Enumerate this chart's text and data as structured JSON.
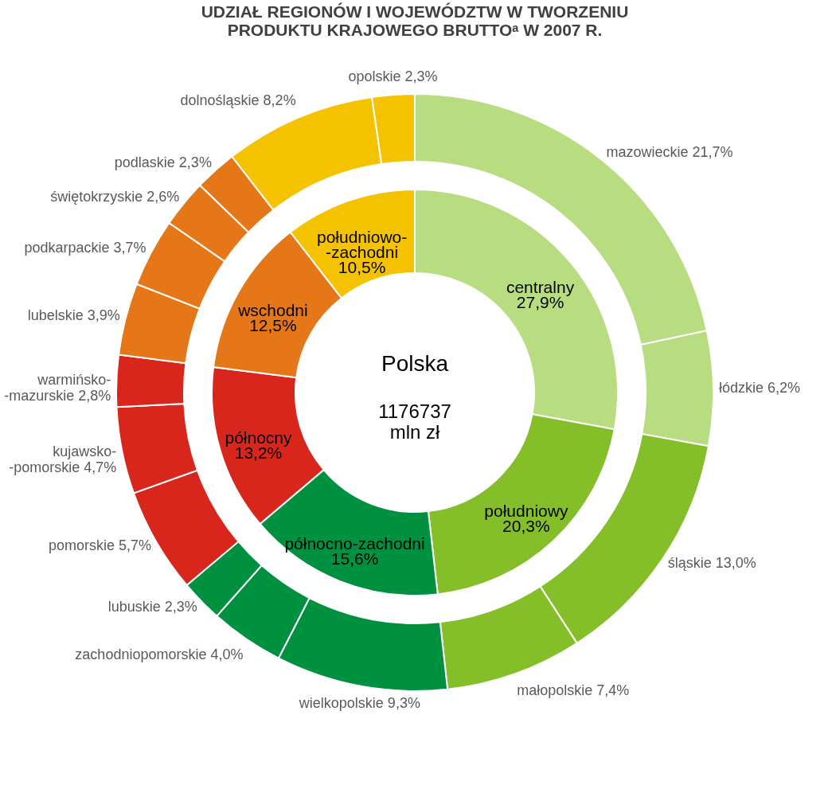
{
  "chart_data": {
    "type": "donut",
    "title": [
      "UDZIAŁ  REGIONÓW  I  WOJEWÓDZTW  W  TWORZENIU",
      "PRODUKTU  KRAJOWEGO  BRUTTOᵃ  W  2007 R."
    ],
    "categories": [
      "centralny",
      "południowy",
      "północno-zachodni",
      "północny",
      "wschodni",
      "południowo-\n-zachodni",
      "mazowieckie",
      "łódzkie",
      "śląskie",
      "małopolskie",
      "wielkopolskie",
      "zachodniopomorskie",
      "lubuskie",
      "pomorskie",
      "kujawsko-\n-pomorskie",
      "warmińsko-\n-mazurskie",
      "lubelskie",
      "podkarpackie",
      "świętokrzyskie",
      "podlaskie",
      "dolnośląskie",
      "opolskie"
    ],
    "series": [
      {
        "values": [
          27.9,
          20.3,
          15.6,
          13.2,
          12.5,
          10.5,
          null,
          null,
          null,
          null,
          null,
          null,
          null,
          null,
          null,
          null,
          null,
          null,
          null,
          null,
          null,
          null
        ],
        "value_labels": [
          "27,9%",
          "20,3%",
          "15,6%",
          "13,2%",
          "12,5%",
          "10,5%",
          null,
          null,
          null,
          null,
          null,
          null,
          null,
          null,
          null,
          null,
          null,
          null,
          null,
          null,
          null,
          null
        ],
        "colors": [
          "#b8dc80",
          "#84bf2a",
          "#009140",
          "#d9261c",
          "#e57718",
          "#f5c200",
          null,
          null,
          null,
          null,
          null,
          null,
          null,
          null,
          null,
          null,
          null,
          null,
          null,
          null,
          null,
          null
        ]
      },
      {
        "values": [
          null,
          null,
          null,
          null,
          null,
          null,
          21.7,
          6.2,
          13.0,
          7.4,
          9.3,
          4.0,
          2.3,
          5.7,
          4.7,
          2.8,
          3.9,
          3.7,
          2.6,
          2.3,
          8.2,
          2.3
        ],
        "value_labels": [
          null,
          null,
          null,
          null,
          null,
          null,
          "21,7%",
          "6,2%",
          "13,0%",
          "7,4%",
          "9,3%",
          "4,0%",
          "2,3%",
          "5,7%",
          "4,7%",
          "2,8%",
          "3,9%",
          "3,7%",
          "2,6%",
          "2,3%",
          "8,2%",
          "2,3%"
        ],
        "colors": [
          null,
          null,
          null,
          null,
          null,
          null,
          "#b8dc80",
          "#b8dc80",
          "#84bf2a",
          "#84bf2a",
          "#009140",
          "#009140",
          "#009140",
          "#d9261c",
          "#d9261c",
          "#d9261c",
          "#e57718",
          "#e57718",
          "#e57718",
          "#e57718",
          "#f5c200",
          "#f5c200"
        ]
      }
    ],
    "annotations": [
      "Polska",
      "1176737\nmln zł"
    ]
  }
}
